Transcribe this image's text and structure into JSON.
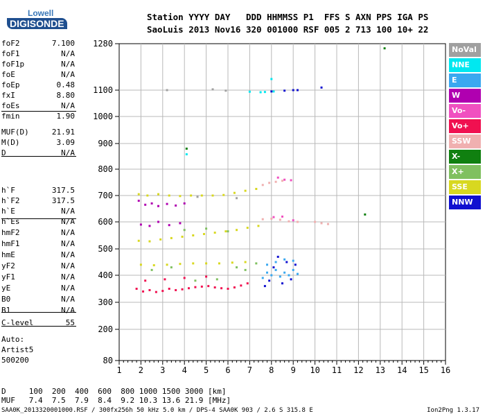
{
  "logo": {
    "top": "Lowell",
    "bottom": "DIGISONDE"
  },
  "header": {
    "line1": "Station YYYY DAY   DDD HHMMSS P1  FFS S AXN PPS IGA PS",
    "line2": "SaoLuis 2013 Nov16 320 001000 RSF 005 2 713 100 10+ 22"
  },
  "params": [
    {
      "name": "foF2",
      "value": "7.100"
    },
    {
      "name": "foF1",
      "value": "N/A"
    },
    {
      "name": "foF1p",
      "value": "N/A"
    },
    {
      "name": "foE",
      "value": "N/A"
    },
    {
      "name": "foEp",
      "value": "0.48"
    },
    {
      "name": "fxI",
      "value": "8.80"
    },
    {
      "name": "foEs",
      "value": "N/A"
    },
    {
      "name": "fmin",
      "value": "1.90"
    },
    {
      "name": "MUF(D)",
      "value": "21.91"
    },
    {
      "name": "M(D)",
      "value": "3.09"
    },
    {
      "name": "D",
      "value": "N/A"
    },
    {
      "name": "h`F",
      "value": "317.5"
    },
    {
      "name": "h`F2",
      "value": "317.5"
    },
    {
      "name": "h`E",
      "value": "N/A"
    },
    {
      "name": "h`Es",
      "value": "N/A"
    },
    {
      "name": "hmF2",
      "value": "N/A"
    },
    {
      "name": "hmF1",
      "value": "N/A"
    },
    {
      "name": "hmE",
      "value": "N/A"
    },
    {
      "name": "yF2",
      "value": "N/A"
    },
    {
      "name": "yF1",
      "value": "N/A"
    },
    {
      "name": "yE",
      "value": "N/A"
    },
    {
      "name": "B0",
      "value": "N/A"
    },
    {
      "name": "B1",
      "value": "N/A"
    },
    {
      "name": "C-level",
      "value": "55"
    }
  ],
  "auto": {
    "line1": "Auto:",
    "line2": "Artist5",
    "line3": "500200"
  },
  "legend": [
    {
      "label": "NoVal",
      "color": "#a0a0a0"
    },
    {
      "label": "NNE",
      "color": "#00e8f0"
    },
    {
      "label": "E",
      "color": "#3aa8f0"
    },
    {
      "label": "W",
      "color": "#b000b0"
    },
    {
      "label": "Vo-",
      "color": "#f050c0"
    },
    {
      "label": "Vo+",
      "color": "#f01050"
    },
    {
      "label": "SSW",
      "color": "#f0b0b0"
    },
    {
      "label": "X-",
      "color": "#108010"
    },
    {
      "label": "X+",
      "color": "#80c060"
    },
    {
      "label": "SSE",
      "color": "#d8d820"
    },
    {
      "label": "NNW",
      "color": "#1010d0"
    }
  ],
  "dmuf": {
    "d_label": "D",
    "d_values": "100  200  400  600  800 1000 1500 3000 [km]",
    "muf_label": "MUF",
    "muf_values": "7.4  7.5  7.9  8.4  9.2 10.3 13.6 21.9 [MHz]"
  },
  "footer": {
    "left": "SAA0K_2013320001000.RSF / 300fx256h 50 kHz 5.0 km / DPS-4 SAA0K 903 / 2.6 S 315.8 E",
    "right": "Ion2Png 1.3.17"
  },
  "chart_data": {
    "type": "scatter",
    "x_ticks": [
      "1",
      "2",
      "3",
      "4",
      "5",
      "6",
      "7",
      "8",
      "9",
      "10",
      "11",
      "12",
      "13",
      "14",
      "15",
      "16"
    ],
    "y_ticks": [
      "80",
      "200",
      "300",
      "400",
      "500",
      "600",
      "700",
      "800",
      "900",
      "1000",
      "1100",
      "1280"
    ],
    "xlim": [
      1,
      16
    ],
    "y_ticks_values": [
      80,
      200,
      300,
      400,
      500,
      600,
      700,
      800,
      900,
      1000,
      1100,
      1280
    ],
    "grid": true,
    "legend_placement": "right",
    "series": [
      {
        "color_key": "SSE",
        "points": [
          [
            1.9,
            705
          ],
          [
            2.3,
            700
          ],
          [
            2.8,
            705
          ],
          [
            3.3,
            700
          ],
          [
            3.8,
            698
          ],
          [
            4.3,
            700
          ],
          [
            4.8,
            700
          ],
          [
            5.3,
            700
          ],
          [
            5.8,
            702
          ],
          [
            6.3,
            710
          ],
          [
            6.8,
            718
          ],
          [
            7.3,
            725
          ],
          [
            1.9,
            530
          ],
          [
            2.4,
            528
          ],
          [
            2.9,
            535
          ],
          [
            3.4,
            540
          ],
          [
            3.9,
            545
          ],
          [
            4.4,
            550
          ],
          [
            4.9,
            555
          ],
          [
            5.4,
            560
          ],
          [
            5.9,
            565
          ],
          [
            6.4,
            570
          ],
          [
            6.9,
            578
          ],
          [
            7.4,
            585
          ],
          [
            2.0,
            440
          ],
          [
            2.6,
            438
          ],
          [
            3.2,
            440
          ],
          [
            3.8,
            443
          ],
          [
            4.4,
            445
          ],
          [
            5.0,
            445
          ],
          [
            5.6,
            445
          ],
          [
            6.2,
            448
          ],
          [
            6.8,
            450
          ]
        ]
      },
      {
        "color_key": "W",
        "points": [
          [
            1.9,
            680
          ],
          [
            2.2,
            665
          ],
          [
            2.5,
            670
          ],
          [
            2.8,
            660
          ],
          [
            3.2,
            668
          ],
          [
            3.6,
            662
          ],
          [
            4.0,
            670
          ],
          [
            2.0,
            590
          ],
          [
            2.4,
            585
          ],
          [
            2.8,
            600
          ],
          [
            3.3,
            588
          ],
          [
            3.8,
            595
          ]
        ]
      },
      {
        "color_key": "Vo+",
        "points": [
          [
            1.8,
            350
          ],
          [
            2.1,
            340
          ],
          [
            2.4,
            345
          ],
          [
            2.7,
            338
          ],
          [
            3.0,
            342
          ],
          [
            3.3,
            350
          ],
          [
            3.6,
            345
          ],
          [
            3.9,
            348
          ],
          [
            4.2,
            352
          ],
          [
            4.5,
            356
          ],
          [
            4.8,
            358
          ],
          [
            5.1,
            360
          ],
          [
            5.4,
            355
          ],
          [
            5.7,
            352
          ],
          [
            6.0,
            350
          ],
          [
            6.3,
            355
          ],
          [
            6.6,
            362
          ],
          [
            6.9,
            370
          ],
          [
            2.2,
            380
          ],
          [
            3.1,
            385
          ],
          [
            4.0,
            390
          ],
          [
            5.0,
            395
          ]
        ]
      },
      {
        "color_key": "SSW",
        "points": [
          [
            7.6,
            740
          ],
          [
            7.9,
            748
          ],
          [
            8.2,
            752
          ],
          [
            8.5,
            756
          ],
          [
            7.6,
            610
          ],
          [
            8.0,
            612
          ],
          [
            8.4,
            608
          ],
          [
            8.8,
            602
          ],
          [
            9.2,
            600
          ],
          [
            10.0,
            600
          ],
          [
            10.3,
            595
          ],
          [
            10.6,
            592
          ]
        ]
      },
      {
        "color_key": "E",
        "points": [
          [
            7.6,
            390
          ],
          [
            7.8,
            410
          ],
          [
            8.0,
            400
          ],
          [
            8.2,
            420
          ],
          [
            8.4,
            395
          ],
          [
            8.6,
            410
          ],
          [
            8.8,
            400
          ],
          [
            9.0,
            420
          ],
          [
            9.2,
            405
          ],
          [
            7.8,
            440
          ],
          [
            8.2,
            450
          ],
          [
            8.6,
            460
          ],
          [
            9.0,
            455
          ]
        ]
      },
      {
        "color_key": "NNW",
        "points": [
          [
            7.7,
            360
          ],
          [
            7.9,
            380
          ],
          [
            8.1,
            430
          ],
          [
            8.3,
            470
          ],
          [
            8.5,
            370
          ],
          [
            8.7,
            450
          ],
          [
            8.9,
            385
          ],
          [
            9.1,
            440
          ],
          [
            8.0,
            1095
          ],
          [
            8.6,
            1098
          ],
          [
            9.0,
            1100
          ],
          [
            10.3,
            1110
          ],
          [
            9.2,
            1100
          ]
        ]
      },
      {
        "color_key": "X+",
        "points": [
          [
            2.5,
            420
          ],
          [
            3.4,
            430
          ],
          [
            4.5,
            380
          ],
          [
            5.5,
            385
          ],
          [
            6.4,
            430
          ],
          [
            6.8,
            420
          ],
          [
            7.3,
            445
          ],
          [
            4.0,
            570
          ],
          [
            5.0,
            575
          ],
          [
            6.0,
            565
          ]
        ]
      },
      {
        "color_key": "NNE",
        "points": [
          [
            7.5,
            1092
          ],
          [
            7.7,
            1093
          ],
          [
            8.1,
            1095
          ],
          [
            7.0,
            1094
          ],
          [
            4.1,
            858
          ],
          [
            8.0,
            1143
          ]
        ]
      },
      {
        "color_key": "Vo-",
        "points": [
          [
            8.3,
            768
          ],
          [
            8.6,
            760
          ],
          [
            8.9,
            758
          ],
          [
            8.1,
            618
          ],
          [
            8.5,
            620
          ],
          [
            9.0,
            606
          ]
        ]
      },
      {
        "color_key": "X-",
        "points": [
          [
            12.3,
            628
          ],
          [
            13.2,
            1262
          ],
          [
            4.1,
            880
          ]
        ]
      },
      {
        "color_key": "NoVal",
        "points": [
          [
            5.3,
            1103
          ],
          [
            5.9,
            1098
          ],
          [
            3.2,
            1100
          ],
          [
            4.6,
            695
          ],
          [
            6.4,
            690
          ]
        ]
      }
    ]
  }
}
